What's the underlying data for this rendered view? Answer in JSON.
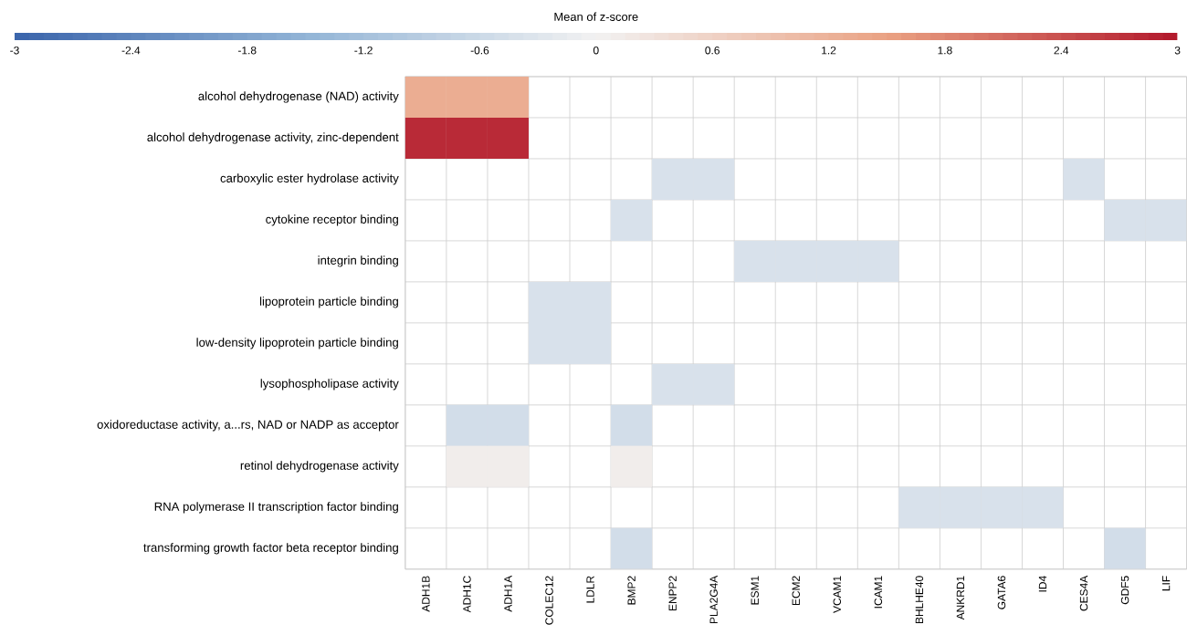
{
  "chart_data": {
    "type": "heatmap",
    "clabel": "Mean of z-score",
    "clim": [
      -3,
      3
    ],
    "cticks": [
      -3,
      -2.4,
      -1.8,
      -1.2,
      -0.6,
      0,
      0.6,
      1.2,
      1.8,
      2.4,
      3
    ],
    "grid": true,
    "categories": [
      "ADH1B",
      "ADH1C",
      "ADH1A",
      "COLEC12",
      "LDLR",
      "BMP2",
      "ENPP2",
      "PLA2G4A",
      "ESM1",
      "ECM2",
      "VCAM1",
      "ICAM1",
      "BHLHE40",
      "ANKRD1",
      "GATA6",
      "ID4",
      "CES4A",
      "GDF5",
      "LIF"
    ],
    "y_categories": [
      "alcohol dehydrogenase (NAD) activity",
      "alcohol dehydrogenase activity, zinc-dependent",
      "carboxylic ester hydrolase activity",
      "cytokine receptor binding",
      "integrin binding",
      "lipoprotein particle binding",
      "low-density lipoprotein particle binding",
      "lysophospholipase activity",
      "oxidoreductase activity, a...rs, NAD or NADP as acceptor",
      "retinol dehydrogenase activity",
      "RNA polymerase II transcription factor binding",
      "transforming growth factor beta receptor binding"
    ],
    "cells": [
      [
        1.3,
        1.3,
        1.3,
        null,
        null,
        null,
        null,
        null,
        null,
        null,
        null,
        null,
        null,
        null,
        null,
        null,
        null,
        null,
        null
      ],
      [
        2.8,
        2.8,
        2.8,
        null,
        null,
        null,
        null,
        null,
        null,
        null,
        null,
        null,
        null,
        null,
        null,
        null,
        null,
        null,
        null
      ],
      [
        null,
        null,
        null,
        null,
        null,
        null,
        -0.4,
        -0.4,
        null,
        null,
        null,
        null,
        null,
        null,
        null,
        null,
        -0.4,
        null,
        null
      ],
      [
        null,
        null,
        null,
        null,
        null,
        -0.4,
        null,
        null,
        null,
        null,
        null,
        null,
        null,
        null,
        null,
        null,
        null,
        -0.4,
        -0.4
      ],
      [
        null,
        null,
        null,
        null,
        null,
        null,
        null,
        null,
        -0.4,
        -0.4,
        -0.4,
        -0.4,
        null,
        null,
        null,
        null,
        null,
        null,
        null
      ],
      [
        null,
        null,
        null,
        -0.4,
        -0.4,
        null,
        null,
        null,
        null,
        null,
        null,
        null,
        null,
        null,
        null,
        null,
        null,
        null,
        null
      ],
      [
        null,
        null,
        null,
        -0.4,
        -0.4,
        null,
        null,
        null,
        null,
        null,
        null,
        null,
        null,
        null,
        null,
        null,
        null,
        null,
        null
      ],
      [
        null,
        null,
        null,
        null,
        null,
        null,
        -0.4,
        -0.4,
        null,
        null,
        null,
        null,
        null,
        null,
        null,
        null,
        null,
        null,
        null
      ],
      [
        null,
        -0.5,
        -0.5,
        null,
        null,
        -0.5,
        null,
        null,
        null,
        null,
        null,
        null,
        null,
        null,
        null,
        null,
        null,
        null,
        null
      ],
      [
        null,
        0.1,
        0.1,
        null,
        null,
        0.1,
        null,
        null,
        null,
        null,
        null,
        null,
        null,
        null,
        null,
        null,
        null,
        null,
        null
      ],
      [
        null,
        null,
        null,
        null,
        null,
        null,
        null,
        null,
        null,
        null,
        null,
        null,
        -0.4,
        -0.4,
        -0.4,
        -0.4,
        null,
        null,
        null
      ],
      [
        null,
        null,
        null,
        null,
        null,
        -0.5,
        null,
        null,
        null,
        null,
        null,
        null,
        null,
        null,
        null,
        null,
        null,
        -0.5,
        null
      ]
    ]
  }
}
